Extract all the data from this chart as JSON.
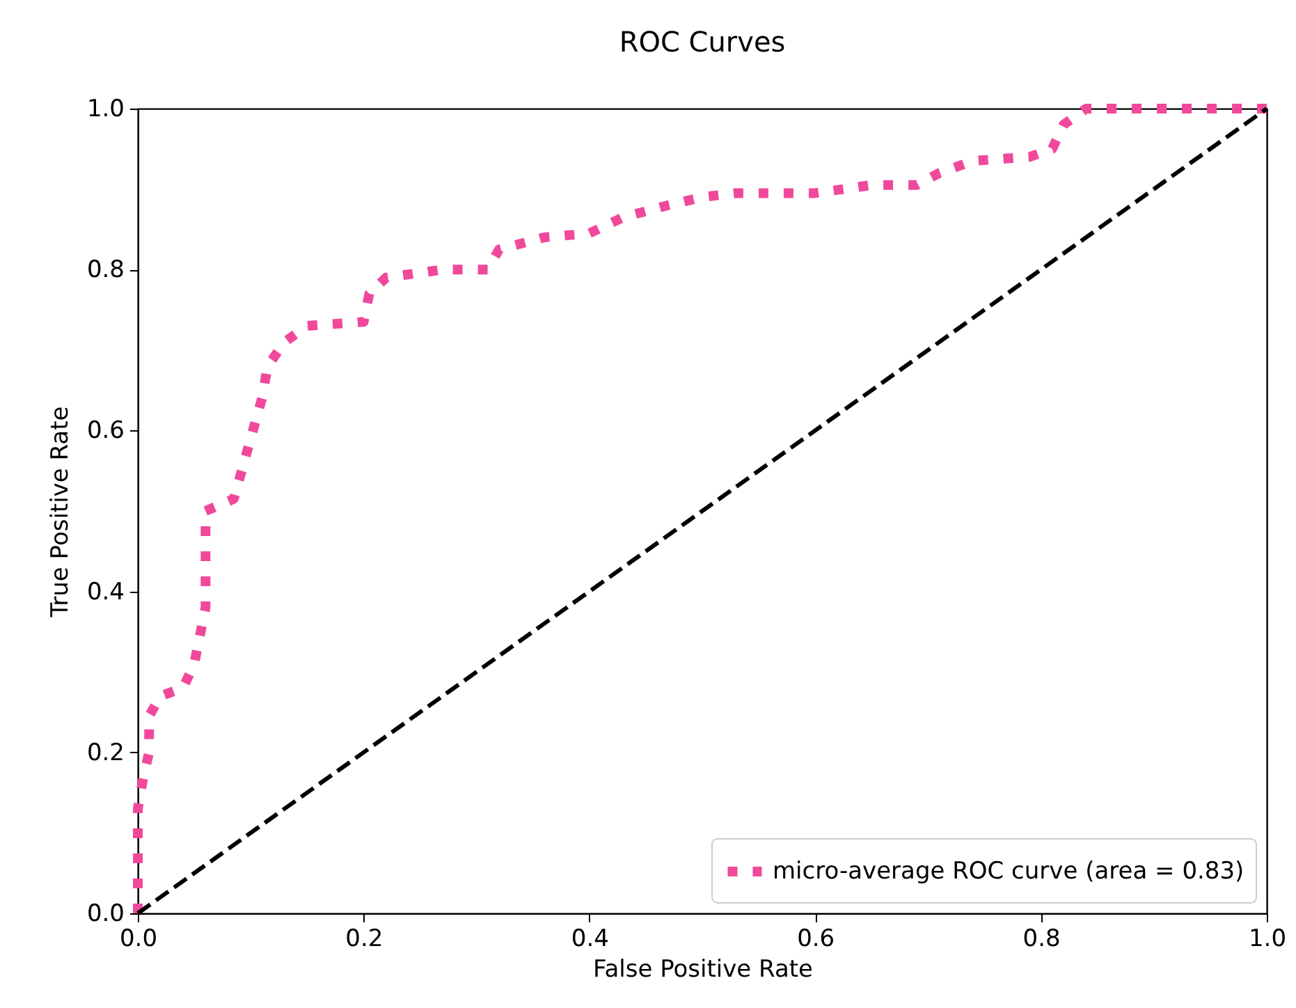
{
  "chart_data": {
    "type": "line",
    "title": "ROC Curves",
    "xlabel": "False Positive Rate",
    "ylabel": "True Positive Rate",
    "xlim": [
      0,
      1
    ],
    "ylim": [
      0,
      1
    ],
    "xticks": [
      {
        "value": 0,
        "label": "0.0"
      },
      0.2,
      0.4,
      0.6,
      0.8,
      {
        "value": 1,
        "label": "1.0"
      }
    ],
    "yticks": [
      {
        "value": 0,
        "label": "0.0"
      },
      0.2,
      0.4,
      0.6,
      0.8,
      {
        "value": 1,
        "label": "1.0"
      }
    ],
    "grid": false,
    "legend": "bottom right",
    "marker": "none",
    "series": [
      {
        "name": "micro-average ROC curve (area = 0.83)",
        "color": "#f0499b",
        "line_style": "dotted",
        "x": [
          0,
          0,
          0,
          0.005,
          0.01,
          0.01,
          0.02,
          0.04,
          0.05,
          0.06,
          0.06,
          0.085,
          0.1,
          0.11,
          0.115,
          0.13,
          0.15,
          0.2,
          0.205,
          0.22,
          0.27,
          0.31,
          0.32,
          0.36,
          0.4,
          0.43,
          0.47,
          0.5,
          0.53,
          0.6,
          0.65,
          0.69,
          0.71,
          0.74,
          0.79,
          0.81,
          0.82,
          0.84,
          1
        ],
        "values": [
          0,
          0.05,
          0.13,
          0.17,
          0.2,
          0.245,
          0.27,
          0.28,
          0.31,
          0.38,
          0.5,
          0.515,
          0.59,
          0.64,
          0.68,
          0.71,
          0.73,
          0.735,
          0.77,
          0.79,
          0.8,
          0.8,
          0.825,
          0.84,
          0.845,
          0.865,
          0.88,
          0.89,
          0.895,
          0.895,
          0.905,
          0.905,
          0.92,
          0.935,
          0.94,
          0.95,
          0.98,
          1,
          1
        ]
      },
      {
        "color": "#000000",
        "line_style": "dashed",
        "x": [
          0,
          1
        ],
        "values": [
          0,
          1
        ]
      }
    ]
  }
}
